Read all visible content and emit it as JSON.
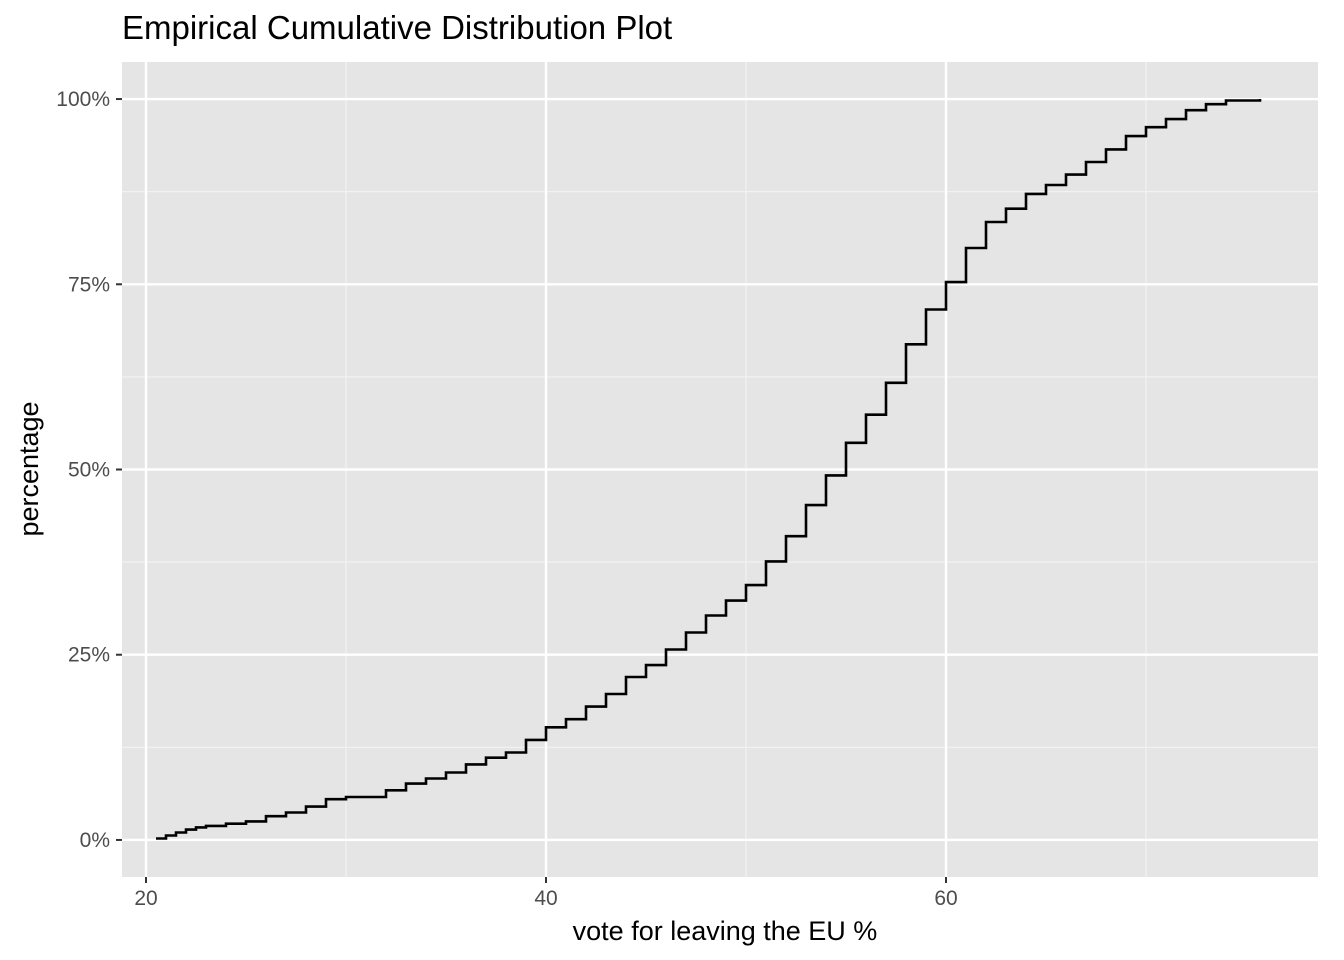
{
  "colors": {
    "panel_background": "#e5e5e5",
    "grid_major": "#ffffff",
    "grid_minor": "#f2f2f2",
    "line": "#000000",
    "tick_text": "#4d4d4d"
  },
  "chart_data": {
    "type": "line",
    "subtype": "ecdf-step",
    "title": "Empirical Cumulative Distribution Plot",
    "xlabel": "vote for leaving the EU %",
    "ylabel": "percentage",
    "xlim": [
      18.8,
      78.6
    ],
    "ylim": [
      -0.05,
      1.05
    ],
    "x_ticks": [
      20,
      40,
      60
    ],
    "x_tick_labels": [
      "20",
      "40",
      "60"
    ],
    "y_ticks": [
      0,
      0.25,
      0.5,
      0.75,
      1.0
    ],
    "y_tick_labels": [
      "0%",
      "25%",
      "50%",
      "75%",
      "100%"
    ],
    "grid": true,
    "legend": "none",
    "series": [
      {
        "x": [
          20.5,
          21.0,
          21.5,
          22.0,
          22.5,
          23.0,
          24.0,
          25.0,
          26.0,
          27.0,
          28.0,
          29.0,
          30.0,
          31.0,
          32.0,
          33.0,
          34.0,
          35.0,
          36.0,
          37.0,
          38.0,
          39.0,
          40.0,
          41.0,
          42.0,
          43.0,
          44.0,
          45.0,
          46.0,
          47.0,
          48.0,
          49.0,
          50.0,
          51.0,
          52.0,
          53.0,
          54.0,
          55.0,
          56.0,
          57.0,
          58.0,
          59.0,
          60.0,
          61.0,
          62.0,
          63.0,
          64.0,
          65.0,
          66.0,
          67.0,
          68.0,
          69.0,
          70.0,
          71.0,
          72.0,
          73.0,
          74.0,
          75.7
        ],
        "y": [
          0.002,
          0.006,
          0.01,
          0.014,
          0.017,
          0.019,
          0.022,
          0.025,
          0.032,
          0.037,
          0.045,
          0.055,
          0.058,
          0.058,
          0.067,
          0.076,
          0.083,
          0.091,
          0.102,
          0.111,
          0.118,
          0.135,
          0.152,
          0.163,
          0.18,
          0.197,
          0.22,
          0.236,
          0.257,
          0.28,
          0.303,
          0.323,
          0.344,
          0.376,
          0.41,
          0.452,
          0.492,
          0.536,
          0.574,
          0.617,
          0.669,
          0.716,
          0.753,
          0.799,
          0.834,
          0.852,
          0.872,
          0.884,
          0.898,
          0.915,
          0.932,
          0.95,
          0.962,
          0.973,
          0.985,
          0.993,
          0.998,
          1.0
        ]
      }
    ]
  }
}
